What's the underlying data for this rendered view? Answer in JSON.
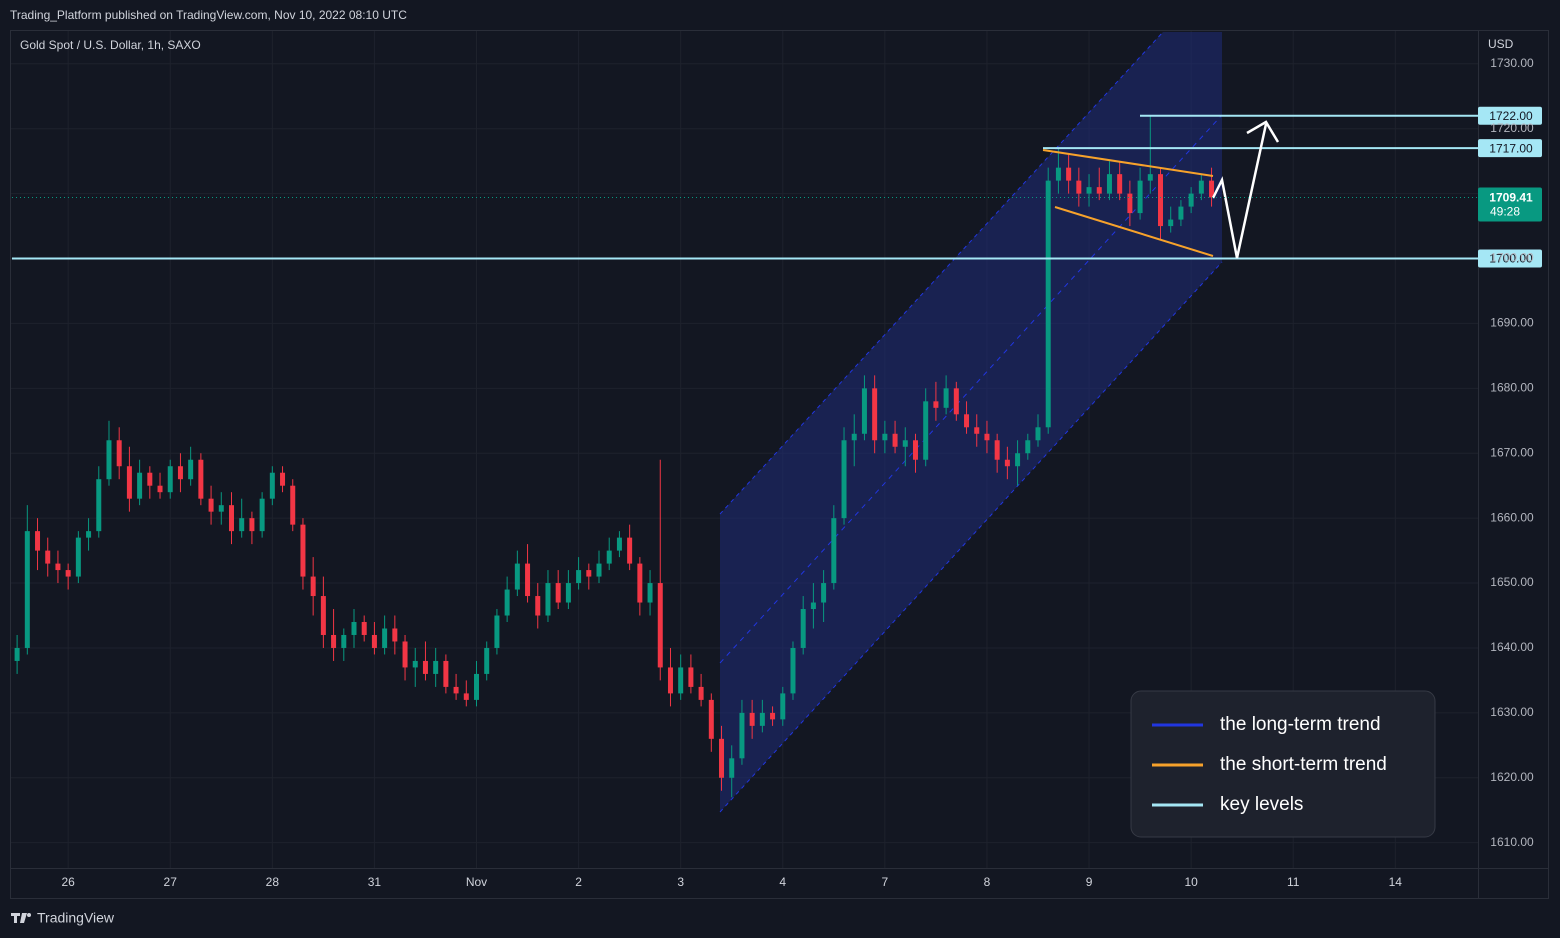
{
  "page": {
    "published": "Trading_Platform published on TradingView.com, Nov 10, 2022 08:10 UTC",
    "brand": "TradingView"
  },
  "chart_data": {
    "type": "candlestick",
    "title": "Gold Spot / U.S. Dollar, 1h, SAXO",
    "y_axis_label": "USD",
    "up_color": "#089981",
    "down_color": "#f23645",
    "grid": true,
    "xlim": [
      -0.55,
      13.81
    ],
    "ylim": [
      1606.1,
      1734.9
    ],
    "xticks": [
      {
        "value": 0,
        "label": "26"
      },
      {
        "value": 1,
        "label": "27"
      },
      {
        "value": 2,
        "label": "28"
      },
      {
        "value": 3,
        "label": "31"
      },
      {
        "value": 4,
        "label": "Nov"
      },
      {
        "value": 5,
        "label": "2"
      },
      {
        "value": 6,
        "label": "3"
      },
      {
        "value": 7,
        "label": "4"
      },
      {
        "value": 8,
        "label": "7"
      },
      {
        "value": 9,
        "label": "8"
      },
      {
        "value": 10,
        "label": "9"
      },
      {
        "value": 11,
        "label": "10"
      },
      {
        "value": 12,
        "label": "11"
      },
      {
        "value": 13,
        "label": "14"
      }
    ],
    "yticks": [
      {
        "value": 1610,
        "label": "1610.00"
      },
      {
        "value": 1620,
        "label": "1620.00"
      },
      {
        "value": 1630,
        "label": "1630.00"
      },
      {
        "value": 1640,
        "label": "1640.00"
      },
      {
        "value": 1650,
        "label": "1650.00"
      },
      {
        "value": 1660,
        "label": "1660.00"
      },
      {
        "value": 1670,
        "label": "1670.00"
      },
      {
        "value": 1680,
        "label": "1680.00"
      },
      {
        "value": 1690,
        "label": "1690.00"
      },
      {
        "value": 1700,
        "label": "1700.00"
      },
      {
        "value": 1710,
        "label": "1710.00"
      },
      {
        "value": 1720,
        "label": "1720.00"
      },
      {
        "value": 1730,
        "label": "1730.00"
      }
    ],
    "candles": {
      "x": [
        -0.5,
        -0.4,
        -0.3,
        -0.2,
        -0.1,
        0,
        0.1,
        0.2,
        0.3,
        0.4,
        0.5,
        0.6,
        0.7,
        0.8,
        0.9,
        1,
        1.1,
        1.2,
        1.3,
        1.4,
        1.5,
        1.6,
        1.7,
        1.8,
        1.9,
        2,
        2.1,
        2.2,
        2.3,
        2.4,
        2.5,
        2.6,
        2.7,
        2.8,
        2.9,
        3,
        3.1,
        3.2,
        3.3,
        3.4,
        3.5,
        3.6,
        3.7,
        3.8,
        3.9,
        4,
        4.1,
        4.2,
        4.3,
        4.4,
        4.5,
        4.6,
        4.7,
        4.8,
        4.9,
        5,
        5.1,
        5.2,
        5.3,
        5.4,
        5.5,
        5.6,
        5.7,
        5.8,
        5.9,
        6,
        6.1,
        6.2,
        6.3,
        6.4,
        6.5,
        6.6,
        6.7,
        6.8,
        6.9,
        7,
        7.1,
        7.2,
        7.3,
        7.4,
        7.5,
        7.6,
        7.7,
        7.8,
        7.9,
        8,
        8.1,
        8.2,
        8.3,
        8.4,
        8.5,
        8.6,
        8.7,
        8.8,
        8.9,
        9,
        9.1,
        9.2,
        9.3,
        9.4,
        9.5,
        9.6,
        9.7,
        9.8,
        9.9,
        10,
        10.1,
        10.2,
        10.3,
        10.4,
        10.5,
        10.6,
        10.7,
        10.8,
        10.9,
        11,
        11.1,
        11.2
      ],
      "open": [
        1638,
        1640,
        1658,
        1655,
        1653,
        1652,
        1651,
        1657,
        1658,
        1666,
        1672,
        1668,
        1663,
        1667,
        1665,
        1664,
        1668,
        1666,
        1669,
        1663,
        1661,
        1662,
        1658,
        1660,
        1658,
        1663,
        1667,
        1665,
        1659,
        1651,
        1648,
        1642,
        1640,
        1642,
        1644,
        1642,
        1640,
        1643,
        1641,
        1637,
        1638,
        1636,
        1638,
        1634,
        1633,
        1632,
        1636,
        1640,
        1645,
        1649,
        1653,
        1648,
        1645,
        1650,
        1647,
        1650,
        1652,
        1651,
        1653,
        1655,
        1657,
        1653,
        1647,
        1650,
        1637,
        1633,
        1637,
        1634,
        1632,
        1626,
        1620,
        1623,
        1630,
        1628,
        1630,
        1629,
        1633,
        1640,
        1646,
        1647,
        1650,
        1660,
        1672,
        1673,
        1680,
        1672,
        1673,
        1671,
        1672,
        1669,
        1678,
        1677,
        1680,
        1676,
        1674,
        1673,
        1672,
        1669,
        1668,
        1670,
        1672,
        1674,
        1712,
        1714,
        1712,
        1710,
        1711,
        1710,
        1713,
        1710,
        1707,
        1712,
        1713,
        1705,
        1706,
        1708,
        1710,
        1712
      ],
      "high": [
        1642,
        1662,
        1660,
        1657,
        1655,
        1653,
        1658,
        1660,
        1668,
        1675,
        1674,
        1671,
        1669,
        1668,
        1667,
        1669,
        1670,
        1671,
        1670,
        1665,
        1664,
        1664,
        1663,
        1661,
        1664,
        1668,
        1668,
        1666,
        1660,
        1654,
        1651,
        1646,
        1643,
        1646,
        1645,
        1644,
        1645,
        1645,
        1642,
        1640,
        1641,
        1640,
        1639,
        1636,
        1635,
        1638,
        1641,
        1646,
        1651,
        1655,
        1656,
        1650,
        1652,
        1652,
        1652,
        1654,
        1653,
        1655,
        1657,
        1658,
        1659,
        1654,
        1652,
        1669,
        1640,
        1639,
        1639,
        1636,
        1633,
        1628,
        1625,
        1632,
        1632,
        1632,
        1631,
        1634,
        1641,
        1648,
        1650,
        1652,
        1662,
        1674,
        1676,
        1682,
        1682,
        1675,
        1675,
        1674,
        1673,
        1680,
        1681,
        1682,
        1681,
        1678,
        1676,
        1675,
        1673,
        1671,
        1672,
        1673,
        1676,
        1714,
        1717,
        1716,
        1714,
        1713,
        1714,
        1715,
        1715,
        1712,
        1714,
        1722,
        1714,
        1708,
        1709,
        1711,
        1713,
        1714
      ],
      "low": [
        1636,
        1639,
        1652,
        1651,
        1650,
        1649,
        1650,
        1655,
        1657,
        1665,
        1666,
        1661,
        1662,
        1663,
        1663,
        1663,
        1664,
        1665,
        1662,
        1659,
        1659,
        1656,
        1657,
        1656,
        1657,
        1662,
        1664,
        1658,
        1649,
        1645,
        1640,
        1638,
        1638,
        1640,
        1641,
        1639,
        1639,
        1639,
        1635,
        1634,
        1635,
        1634,
        1633,
        1632,
        1631,
        1631,
        1635,
        1639,
        1644,
        1648,
        1647,
        1643,
        1644,
        1646,
        1646,
        1649,
        1649,
        1650,
        1652,
        1654,
        1652,
        1645,
        1645,
        1635,
        1631,
        1632,
        1633,
        1631,
        1624,
        1618,
        1617,
        1622,
        1626,
        1627,
        1628,
        1628,
        1632,
        1639,
        1643,
        1644,
        1649,
        1659,
        1668,
        1672,
        1670,
        1670,
        1670,
        1668,
        1667,
        1668,
        1675,
        1676,
        1675,
        1673,
        1671,
        1670,
        1667,
        1666,
        1665,
        1669,
        1671,
        1673,
        1710,
        1710,
        1708,
        1708,
        1709,
        1709,
        1709,
        1705,
        1706,
        1710,
        1703,
        1704,
        1705,
        1707,
        1709,
        1708
      ],
      "close": [
        1640,
        1658,
        1655,
        1653,
        1652,
        1651,
        1657,
        1658,
        1666,
        1672,
        1668,
        1663,
        1667,
        1665,
        1664,
        1668,
        1666,
        1669,
        1663,
        1661,
        1662,
        1658,
        1660,
        1658,
        1663,
        1667,
        1665,
        1659,
        1651,
        1648,
        1642,
        1640,
        1642,
        1644,
        1642,
        1640,
        1643,
        1641,
        1637,
        1638,
        1636,
        1638,
        1634,
        1633,
        1632,
        1636,
        1640,
        1645,
        1649,
        1653,
        1648,
        1645,
        1650,
        1647,
        1650,
        1652,
        1651,
        1653,
        1655,
        1657,
        1653,
        1647,
        1650,
        1637,
        1633,
        1637,
        1634,
        1632,
        1626,
        1620,
        1623,
        1630,
        1628,
        1630,
        1629,
        1633,
        1640,
        1646,
        1647,
        1650,
        1660,
        1672,
        1673,
        1680,
        1672,
        1673,
        1671,
        1672,
        1669,
        1678,
        1677,
        1680,
        1676,
        1674,
        1673,
        1672,
        1669,
        1668,
        1670,
        1672,
        1674,
        1712,
        1714,
        1712,
        1710,
        1711,
        1710,
        1713,
        1710,
        1707,
        1712,
        1713,
        1705,
        1706,
        1708,
        1710,
        1712,
        1709.41
      ]
    },
    "countdown": "49:28",
    "key_levels": {
      "values": [
        1700,
        1717,
        1722
      ],
      "value_labels": [
        "1700.00",
        "1717.00",
        "1722.00"
      ],
      "color": "#a5e7f5"
    },
    "legend": [
      {
        "name": "the long-term trend",
        "color": "#2136e0"
      },
      {
        "name": "the short-term trend",
        "color": "#f7a22b"
      },
      {
        "name": "key levels",
        "color": "#a5e7f5"
      }
    ]
  }
}
